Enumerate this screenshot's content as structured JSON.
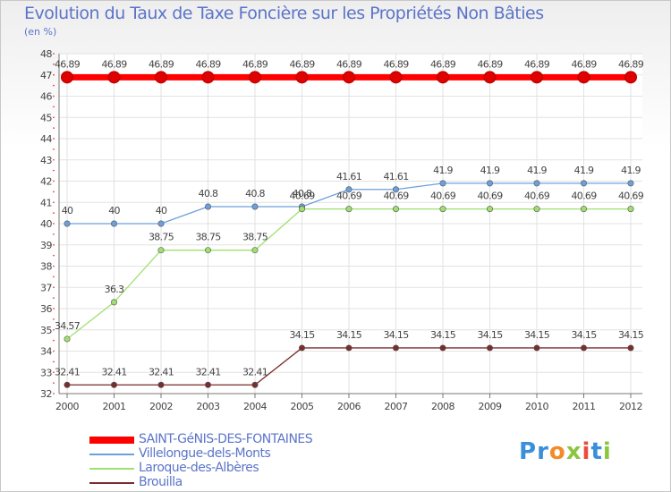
{
  "title": "Evolution du Taux de Taxe Foncière sur les Propriétés Non Bâties",
  "subtitle": "(en %)",
  "logo": {
    "text": "Proxiti",
    "letters": [
      "P",
      "r",
      "o",
      "x",
      "i",
      "t",
      "i"
    ],
    "colors": [
      "#3a8fd9",
      "#3a8fd9",
      "#f28c28",
      "#8cc63f",
      "#e94e3c",
      "#3a8fd9",
      "#8cc63f"
    ]
  },
  "chart_data": {
    "type": "line",
    "title": "Evolution du Taux de Taxe Foncière sur les Propriétés Non Bâties",
    "ylabel": "(en %)",
    "xlabel": "",
    "x": [
      "2000",
      "2001",
      "2002",
      "2003",
      "2004",
      "2005",
      "2006",
      "2007",
      "2008",
      "2009",
      "2010",
      "2011",
      "2012"
    ],
    "ylim": [
      32,
      48
    ],
    "yticks": [
      "32",
      "33",
      "34",
      "35",
      "36",
      "37",
      "38",
      "39",
      "40",
      "41",
      "42",
      "43",
      "44",
      "45",
      "46",
      "47",
      "48"
    ],
    "grid": true,
    "legend_position": "bottom-left",
    "series": [
      {
        "name": "SAINT-GéNIS-DES-FONTAINES",
        "color": "#ff0000",
        "values": [
          46.89,
          46.89,
          46.89,
          46.89,
          46.89,
          46.89,
          46.89,
          46.89,
          46.89,
          46.89,
          46.89,
          46.89,
          46.89
        ],
        "labels": [
          "46.89",
          "46.89",
          "46.89",
          "46.89",
          "46.89",
          "46.89",
          "46.89",
          "46.89",
          "46.89",
          "46.89",
          "46.89",
          "46.89",
          "46.89"
        ]
      },
      {
        "name": "Villelongue-dels-Monts",
        "color": "#6ca0dc",
        "values": [
          40,
          40,
          40,
          40.8,
          40.8,
          40.8,
          41.61,
          41.61,
          41.9,
          41.9,
          41.9,
          41.9,
          41.9
        ],
        "labels": [
          "40",
          "40",
          "40",
          "40.8",
          "40.8",
          "40.8",
          "41.61",
          "41.61",
          "41.9",
          "41.9",
          "41.9",
          "41.9",
          "41.9"
        ]
      },
      {
        "name": "Laroque-des-Albères",
        "color": "#9ee06f",
        "values": [
          34.57,
          36.3,
          38.75,
          38.75,
          38.75,
          40.69,
          40.69,
          40.69,
          40.69,
          40.69,
          40.69,
          40.69,
          40.69
        ],
        "labels": [
          "34.57",
          "36.3",
          "38.75",
          "38.75",
          "38.75",
          "40.69",
          "40.69",
          "40.69",
          "40.69",
          "40.69",
          "40.69",
          "40.69",
          "40.69"
        ]
      },
      {
        "name": "Brouilla",
        "color": "#7a2d2d",
        "values": [
          32.41,
          32.41,
          32.41,
          32.41,
          32.41,
          34.15,
          34.15,
          34.15,
          34.15,
          34.15,
          34.15,
          34.15,
          34.15
        ],
        "labels": [
          "32.41",
          "32.41",
          "32.41",
          "32.41",
          "32.41",
          "34.15",
          "34.15",
          "34.15",
          "34.15",
          "34.15",
          "34.15",
          "34.15",
          "34.15"
        ]
      }
    ]
  }
}
